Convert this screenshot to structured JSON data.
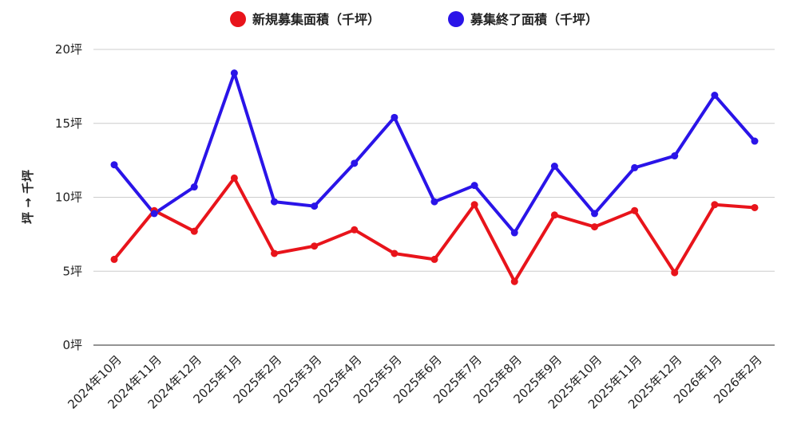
{
  "chart_data": {
    "type": "line",
    "title": "",
    "xlabel": "",
    "ylabel": "坪 → 千坪",
    "ylim": [
      0,
      20
    ],
    "yticks": [
      "0坪",
      "5坪",
      "10坪",
      "15坪",
      "20坪"
    ],
    "ytick_values": [
      0,
      5,
      10,
      15,
      20
    ],
    "grid": true,
    "legend_position": "top-center",
    "categories": [
      "2024年10月",
      "2024年11月",
      "2024年12月",
      "2025年1月",
      "2025年2月",
      "2025年3月",
      "2025年4月",
      "2025年5月",
      "2025年6月",
      "2025年7月",
      "2025年8月",
      "2025年9月",
      "2025年10月",
      "2025年11月",
      "2025年12月",
      "2026年1月",
      "2026年2月"
    ],
    "series": [
      {
        "name": "新規募集面積（千坪）",
        "color": "#e8141b",
        "values": [
          5.8,
          9.1,
          7.7,
          11.3,
          6.2,
          6.7,
          7.8,
          6.2,
          5.8,
          9.5,
          4.3,
          8.8,
          8.0,
          9.1,
          4.9,
          9.5,
          9.3
        ]
      },
      {
        "name": "募集終了面積（千坪）",
        "color": "#2a14e8",
        "values": [
          12.2,
          8.9,
          10.7,
          18.4,
          9.7,
          9.4,
          12.3,
          15.4,
          9.7,
          10.8,
          7.6,
          12.1,
          8.9,
          12.0,
          12.8,
          16.9,
          13.8
        ]
      }
    ]
  }
}
